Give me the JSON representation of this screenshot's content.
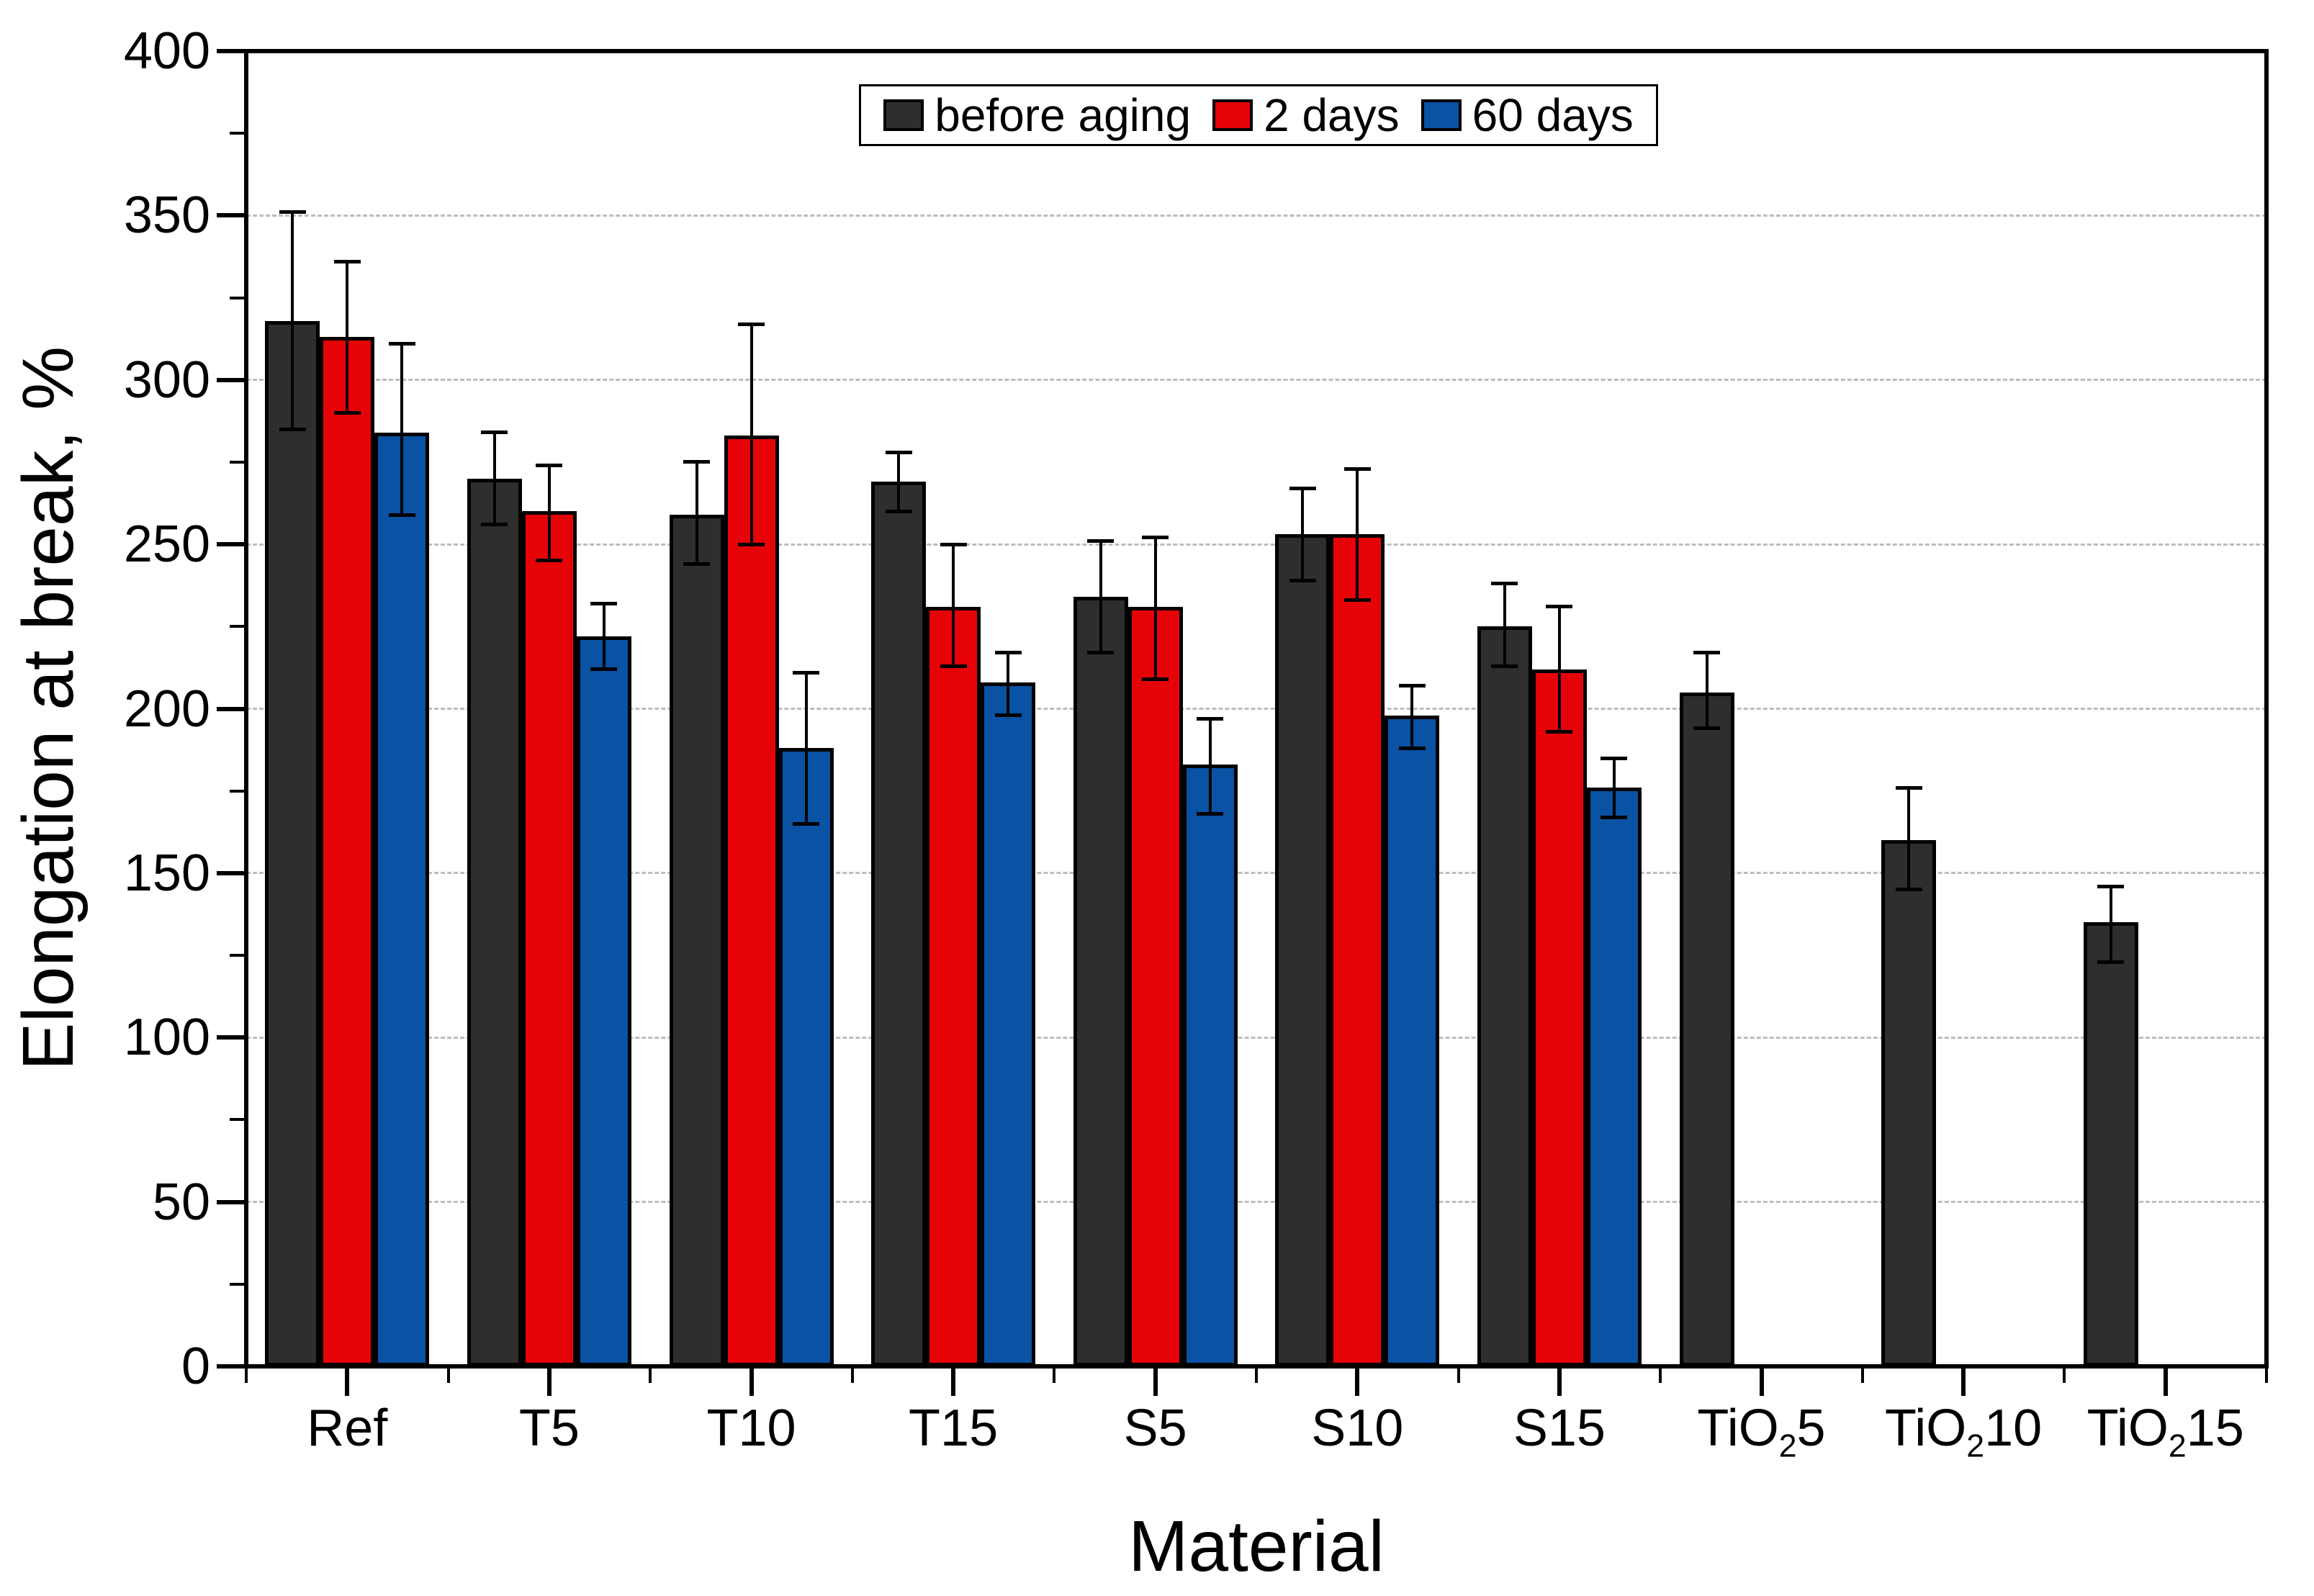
{
  "figure": {
    "background": "#ffffff"
  },
  "chart_data": {
    "type": "bar",
    "title": "",
    "xlabel": "Material",
    "ylabel": "Elongation at break, %",
    "ylim": [
      0,
      400
    ],
    "ytick_step": 50,
    "ytick_minor_step": 25,
    "yticks": [
      0,
      50,
      100,
      150,
      200,
      250,
      300,
      350,
      400
    ],
    "grid": "horizontal-dashed",
    "legend_position": "top-center",
    "error_bars": true,
    "categories": [
      "Ref",
      "T5",
      "T10",
      "T15",
      "S5",
      "S10",
      "S15",
      "TiO₂5",
      "TiO₂10",
      "TiO₂15"
    ],
    "series": [
      {
        "name": "before aging",
        "color": "#2e2e2e",
        "values": [
          318,
          270,
          259,
          269,
          234,
          253,
          225,
          205,
          160,
          135
        ],
        "err_low": [
          285,
          256,
          244,
          260,
          217,
          239,
          213,
          194,
          145,
          123
        ],
        "err_high": [
          351,
          284,
          275,
          278,
          251,
          267,
          238,
          217,
          176,
          146
        ]
      },
      {
        "name": "2 days",
        "color": "#e60308",
        "values": [
          313,
          260,
          283,
          231,
          231,
          253,
          212,
          null,
          null,
          null
        ],
        "err_low": [
          290,
          245,
          250,
          213,
          209,
          233,
          193,
          null,
          null,
          null
        ],
        "err_high": [
          336,
          274,
          317,
          250,
          252,
          273,
          231,
          null,
          null,
          null
        ]
      },
      {
        "name": "60 days",
        "color": "#0a52a4",
        "values": [
          284,
          222,
          188,
          208,
          183,
          198,
          176,
          null,
          null,
          null
        ],
        "err_low": [
          259,
          212,
          165,
          198,
          168,
          188,
          167,
          null,
          null,
          null
        ],
        "err_high": [
          311,
          232,
          211,
          217,
          197,
          207,
          185,
          null,
          null,
          null
        ]
      }
    ]
  }
}
